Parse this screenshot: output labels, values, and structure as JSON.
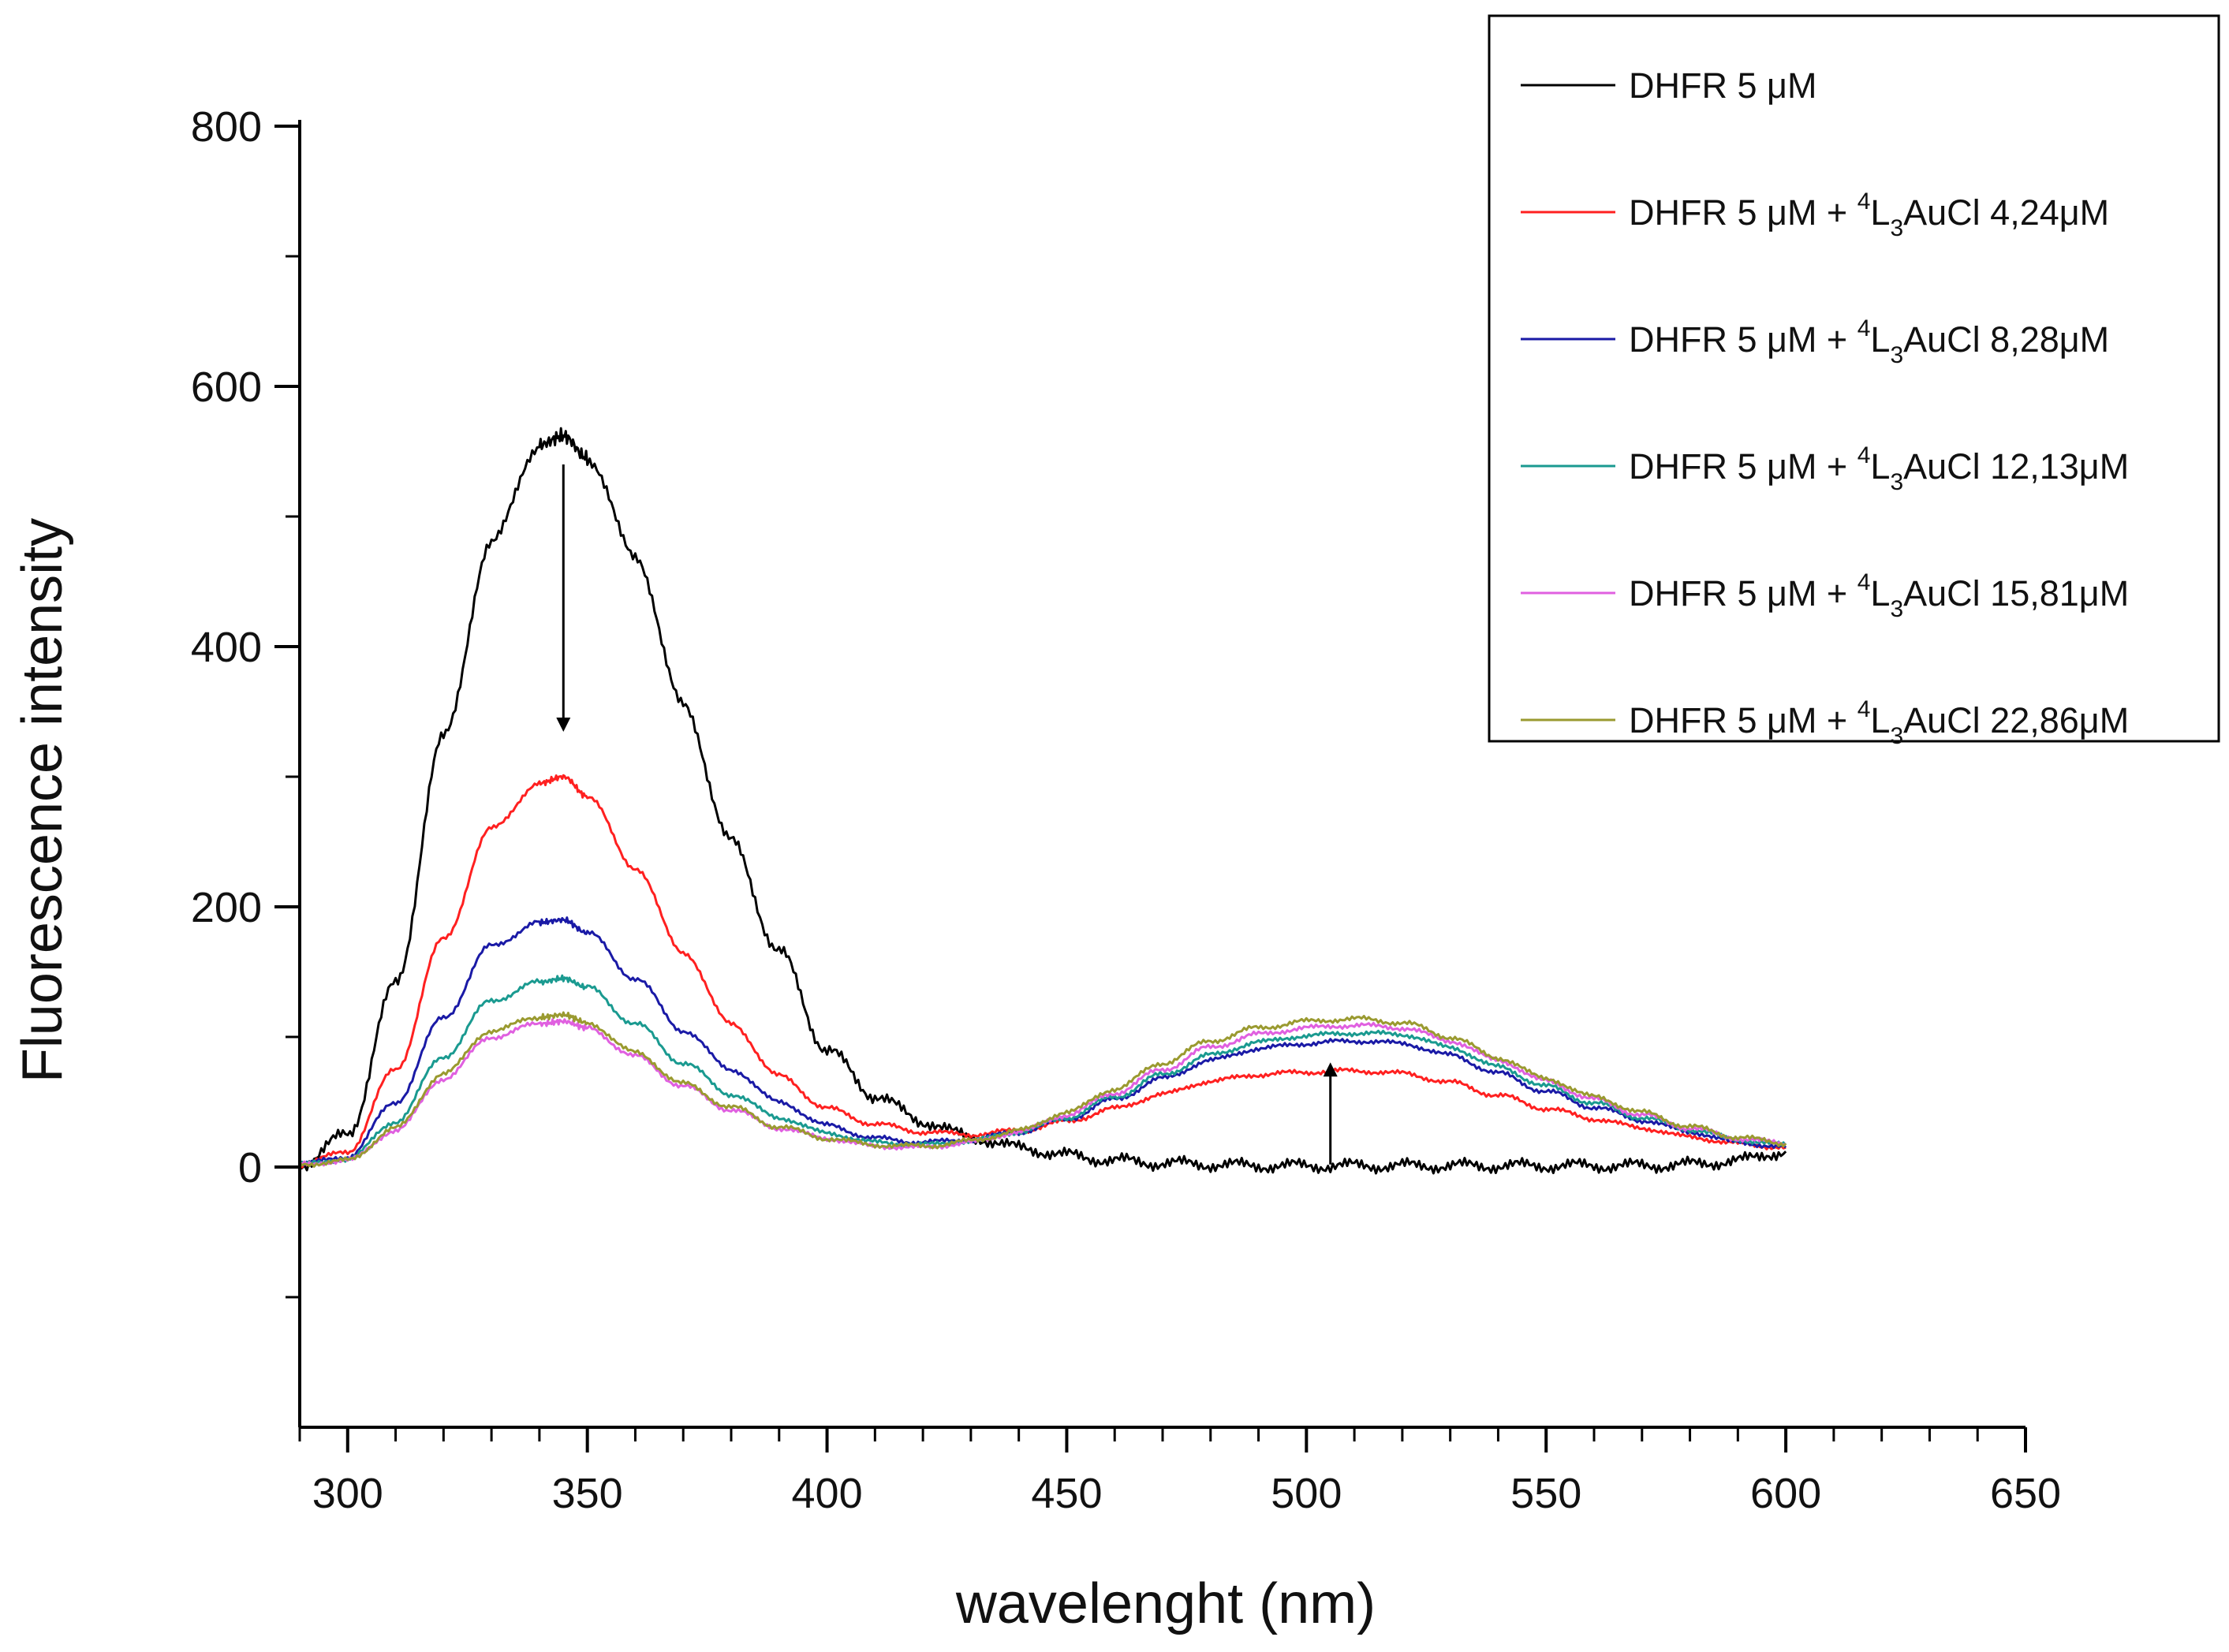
{
  "chart_data": {
    "type": "line",
    "title": "",
    "xlabel": "wavelenght (nm)",
    "ylabel": "Fluorescence intensity",
    "xlim": [
      290,
      650
    ],
    "ylim": [
      -200,
      800
    ],
    "x_ticks": [
      "300",
      "350",
      "400",
      "450",
      "500",
      "550",
      "600",
      "650"
    ],
    "y_ticks": [
      "0",
      "200",
      "400",
      "600",
      "800"
    ],
    "grid": false,
    "legend_position": "top-right",
    "x": [
      290,
      300,
      310,
      320,
      330,
      340,
      345,
      350,
      360,
      370,
      380,
      390,
      400,
      410,
      420,
      430,
      440,
      450,
      460,
      470,
      480,
      490,
      500,
      510,
      520,
      530,
      540,
      550,
      560,
      570,
      580,
      590,
      600
    ],
    "series": [
      {
        "name": "DHFR 5 μM",
        "label_parts": {
          "prefix": "DHFR 5 μM",
          "sup": "",
          "sub": "",
          "rest": ""
        },
        "color": "#000000",
        "values": [
          2,
          25,
          140,
          330,
          480,
          555,
          562,
          545,
          470,
          355,
          250,
          165,
          90,
          55,
          35,
          23,
          15,
          9,
          5,
          3,
          2,
          1,
          1,
          1,
          1,
          1,
          1,
          1,
          1,
          1,
          2,
          5,
          12
        ]
      },
      {
        "name": "DHFR 5 μM + 4L3AuCl 4,24μM",
        "label_parts": {
          "prefix": "DHFR 5 μM + ",
          "sup": "4",
          "sub": "3",
          "rest": "AuCl 4,24μM"
        },
        "color": "#ff2020",
        "values": [
          2,
          12,
          75,
          175,
          260,
          295,
          300,
          285,
          230,
          165,
          110,
          70,
          45,
          33,
          27,
          25,
          28,
          35,
          45,
          56,
          66,
          71,
          73,
          74,
          72,
          65,
          55,
          45,
          37,
          30,
          23,
          18,
          15
        ]
      },
      {
        "name": "DHFR 5 μM + 4L3AuCl 8,28μM",
        "label_parts": {
          "prefix": "DHFR 5 μM + ",
          "sup": "4",
          "sub": "3",
          "rest": "AuCl  8,28μM"
        },
        "color": "#1a1aa6",
        "values": [
          2,
          8,
          50,
          115,
          170,
          188,
          190,
          180,
          145,
          105,
          75,
          50,
          32,
          22,
          19,
          21,
          27,
          37,
          52,
          68,
          82,
          91,
          95,
          97,
          95,
          86,
          72,
          58,
          46,
          36,
          27,
          19,
          15
        ]
      },
      {
        "name": "DHFR 5 μM + 4L3AuCl 12,13μM",
        "label_parts": {
          "prefix": "DHFR 5 μM + ",
          "sup": "4",
          "sub": "3",
          "rest": "AuCl  12,13μM"
        },
        "color": "#1a9a90",
        "values": [
          2,
          6,
          35,
          85,
          128,
          142,
          145,
          138,
          110,
          80,
          56,
          38,
          26,
          19,
          17,
          20,
          27,
          38,
          54,
          71,
          86,
          96,
          101,
          103,
          102,
          92,
          77,
          62,
          49,
          38,
          29,
          21,
          17
        ]
      },
      {
        "name": "DHFR 5 μM + 4L3AuCl 15,81μM",
        "label_parts": {
          "prefix": "DHFR 5 μM + ",
          "sup": "4",
          "sub": "3",
          "rest": "AuCl  15,81μM"
        },
        "color": "#e060e0",
        "values": [
          2,
          5,
          28,
          68,
          100,
          110,
          112,
          107,
          85,
          62,
          44,
          30,
          22,
          16,
          15,
          19,
          27,
          40,
          57,
          75,
          92,
          102,
          107,
          109,
          107,
          97,
          82,
          66,
          52,
          40,
          30,
          22,
          18
        ]
      },
      {
        "name": "DHFR 5 μM + 4L3AuCl 22,86μM",
        "label_parts": {
          "prefix": "DHFR 5 μM + ",
          "sup": "4",
          "sub": "3",
          "rest": "AuCl  22,86μM"
        },
        "color": "#9a9a30",
        "values": [
          2,
          5,
          30,
          72,
          105,
          115,
          117,
          111,
          88,
          64,
          46,
          31,
          22,
          17,
          16,
          20,
          28,
          42,
          60,
          80,
          97,
          107,
          112,
          114,
          111,
          100,
          84,
          68,
          54,
          42,
          31,
          23,
          18
        ]
      }
    ],
    "annotations": [
      {
        "type": "arrow",
        "direction": "down",
        "x": 345,
        "y_from": 540,
        "y_to": 340
      },
      {
        "type": "arrow",
        "direction": "up",
        "x": 505,
        "y_from": 2,
        "y_to": 75
      }
    ]
  }
}
